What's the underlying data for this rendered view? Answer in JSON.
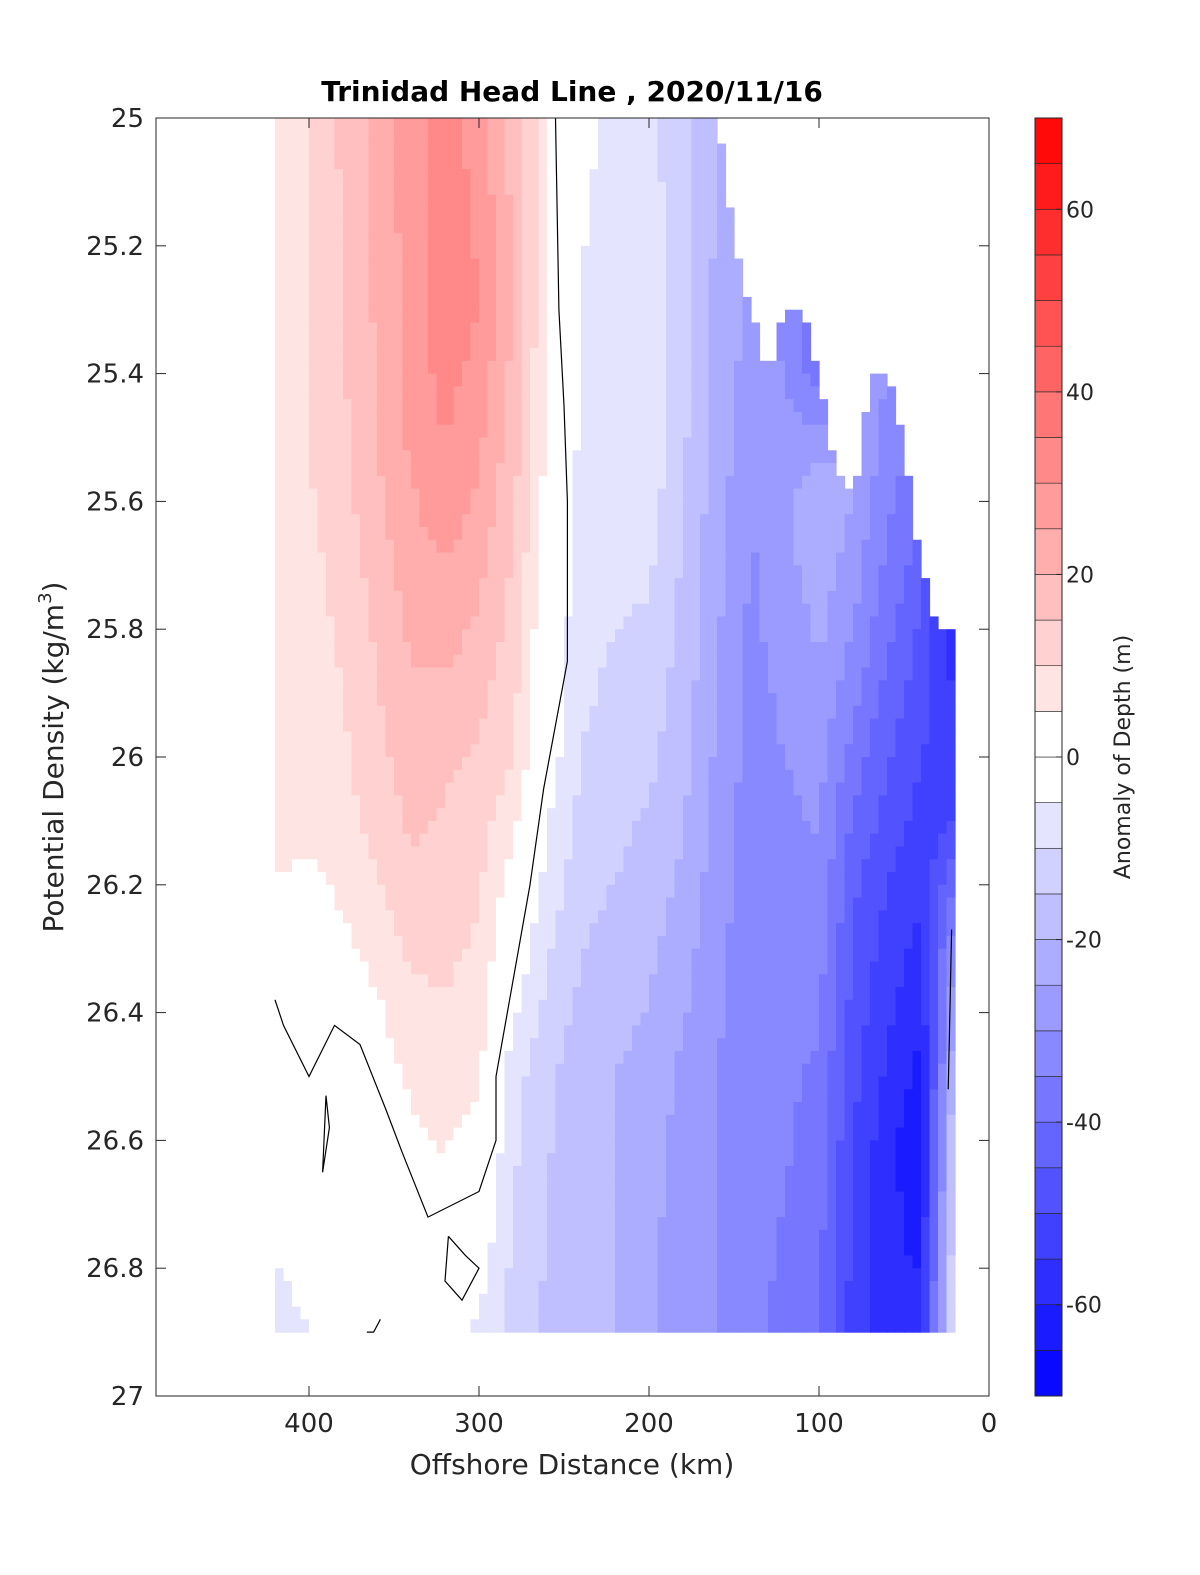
{
  "chart_data": {
    "type": "contourf",
    "title": "Trinidad Head Line , 2020/11/16",
    "xlabel": "Offshore Distance (km)",
    "ylabel_main": "Potential Density (kg/m",
    "ylabel_sup": "3",
    "ylabel_close": ")",
    "colorbar_label": "Anomaly of Depth (m)",
    "x_axis": {
      "range": [
        490,
        0
      ],
      "reversed": true,
      "ticks": [
        400,
        300,
        200,
        100,
        0
      ],
      "tick_labels": [
        "400",
        "300",
        "200",
        "100",
        "0"
      ]
    },
    "y_axis": {
      "range": [
        25,
        27
      ],
      "reversed": true,
      "ticks": [
        25,
        25.2,
        25.4,
        25.6,
        25.8,
        26,
        26.2,
        26.4,
        26.6,
        26.8,
        27
      ],
      "tick_labels": [
        "25",
        "25.2",
        "25.4",
        "25.6",
        "25.8",
        "26",
        "26.2",
        "26.4",
        "26.6",
        "26.8",
        "27"
      ]
    },
    "colorbar": {
      "range": [
        -70,
        70
      ],
      "levels_step": 5,
      "ticks": [
        60,
        40,
        20,
        0,
        -20,
        -40,
        -60
      ],
      "tick_labels": [
        "60",
        "40",
        "20",
        "0",
        "-20",
        "-40",
        "-60"
      ],
      "neg_color": "#0000ff",
      "pos_color": "#ff0000",
      "zero_color": "#ffffff"
    },
    "data_extent": {
      "x": [
        420,
        20
      ],
      "y": [
        25,
        26.9
      ]
    },
    "upper_boundary": [
      [
        160,
        25
      ],
      [
        150,
        25.2
      ],
      [
        140,
        25.3
      ],
      [
        130,
        25.4
      ],
      [
        120,
        25.3
      ],
      [
        110,
        25.3
      ],
      [
        100,
        25.4
      ],
      [
        90,
        25.55
      ],
      [
        80,
        25.6
      ],
      [
        70,
        25.4
      ],
      [
        60,
        25.4
      ],
      [
        50,
        25.5
      ],
      [
        40,
        25.7
      ],
      [
        30,
        25.8
      ],
      [
        20,
        25.8
      ]
    ],
    "columns_x": [
      420,
      400,
      380,
      360,
      340,
      320,
      300,
      280,
      260,
      240,
      220,
      200,
      180,
      160,
      140,
      120,
      100,
      80,
      60,
      40,
      20
    ],
    "column_profiles": [
      [
        [
          25.0,
          8
        ],
        [
          25.5,
          10
        ],
        [
          26.1,
          8
        ],
        [
          26.4,
          -2
        ],
        [
          26.9,
          -6
        ]
      ],
      [
        [
          25.0,
          10
        ],
        [
          25.5,
          10
        ],
        [
          26.1,
          6
        ],
        [
          26.4,
          -1
        ],
        [
          26.9,
          -5
        ]
      ],
      [
        [
          25.0,
          16
        ],
        [
          25.5,
          14
        ],
        [
          26.1,
          8
        ],
        [
          26.4,
          2
        ],
        [
          26.9,
          -2
        ]
      ],
      [
        [
          25.0,
          22
        ],
        [
          25.5,
          20
        ],
        [
          26.1,
          12
        ],
        [
          26.4,
          4
        ],
        [
          26.9,
          -3
        ]
      ],
      [
        [
          25.0,
          28
        ],
        [
          25.5,
          26
        ],
        [
          26.1,
          16
        ],
        [
          26.5,
          6
        ],
        [
          26.9,
          -3
        ]
      ],
      [
        [
          25.0,
          32
        ],
        [
          25.3,
          34
        ],
        [
          25.6,
          28
        ],
        [
          26.0,
          16
        ],
        [
          26.5,
          8
        ],
        [
          26.9,
          -2
        ]
      ],
      [
        [
          25.0,
          28
        ],
        [
          25.3,
          30
        ],
        [
          25.6,
          24
        ],
        [
          26.0,
          14
        ],
        [
          26.5,
          6
        ],
        [
          26.9,
          -6
        ]
      ],
      [
        [
          25.0,
          18
        ],
        [
          25.3,
          20
        ],
        [
          25.6,
          16
        ],
        [
          26.0,
          10
        ],
        [
          26.5,
          -8
        ],
        [
          26.9,
          -12
        ]
      ],
      [
        [
          25.0,
          6
        ],
        [
          25.5,
          4
        ],
        [
          26.0,
          -2
        ],
        [
          26.5,
          -14
        ],
        [
          26.9,
          -16
        ]
      ],
      [
        [
          25.0,
          -4
        ],
        [
          25.5,
          -6
        ],
        [
          26.0,
          -10
        ],
        [
          26.5,
          -18
        ],
        [
          26.9,
          -18
        ]
      ],
      [
        [
          25.0,
          -6
        ],
        [
          25.5,
          -7
        ],
        [
          26.0,
          -12
        ],
        [
          26.5,
          -20
        ],
        [
          26.9,
          -20
        ]
      ],
      [
        [
          25.0,
          -8
        ],
        [
          25.5,
          -6
        ],
        [
          26.0,
          -14
        ],
        [
          26.5,
          -22
        ],
        [
          26.9,
          -24
        ]
      ],
      [
        [
          25.0,
          -14
        ],
        [
          25.5,
          -14
        ],
        [
          26.0,
          -18
        ],
        [
          26.5,
          -26
        ],
        [
          26.9,
          -30
        ]
      ],
      [
        [
          25.0,
          -20
        ],
        [
          25.5,
          -22
        ],
        [
          26.0,
          -26
        ],
        [
          26.5,
          -30
        ],
        [
          26.9,
          -30
        ]
      ],
      [
        [
          25.3,
          -26
        ],
        [
          25.6,
          -30
        ],
        [
          26.0,
          -32
        ],
        [
          26.5,
          -34
        ],
        [
          26.9,
          -34
        ]
      ],
      [
        [
          25.3,
          -32
        ],
        [
          25.6,
          -26
        ],
        [
          26.0,
          -30
        ],
        [
          26.5,
          -34
        ],
        [
          26.9,
          -36
        ]
      ],
      [
        [
          25.4,
          -38
        ],
        [
          25.6,
          -20
        ],
        [
          26.0,
          -28
        ],
        [
          26.5,
          -36
        ],
        [
          26.9,
          -40
        ]
      ],
      [
        [
          25.55,
          -24
        ],
        [
          25.8,
          -30
        ],
        [
          26.2,
          -44
        ],
        [
          26.6,
          -50
        ],
        [
          26.9,
          -52
        ]
      ],
      [
        [
          25.4,
          -30
        ],
        [
          25.7,
          -36
        ],
        [
          26.2,
          -50
        ],
        [
          26.6,
          -58
        ],
        [
          26.9,
          -60
        ]
      ],
      [
        [
          25.5,
          -36
        ],
        [
          25.8,
          -46
        ],
        [
          26.2,
          -54
        ],
        [
          26.6,
          -64
        ],
        [
          26.9,
          -58
        ]
      ],
      [
        [
          25.8,
          -58
        ],
        [
          26.1,
          -50
        ],
        [
          26.3,
          -30
        ],
        [
          26.6,
          -12
        ],
        [
          26.9,
          -6
        ]
      ]
    ],
    "zero_contours": [
      [
        [
          255,
          25
        ],
        [
          253,
          25.3
        ],
        [
          250,
          25.45
        ],
        [
          248,
          25.6
        ],
        [
          248,
          25.85
        ],
        [
          262,
          26.05
        ],
        [
          270,
          26.2
        ],
        [
          280,
          26.35
        ],
        [
          290,
          26.5
        ],
        [
          290,
          26.6
        ],
        [
          300,
          26.68
        ],
        [
          330,
          26.72
        ],
        [
          345,
          26.62
        ],
        [
          355,
          26.55
        ],
        [
          370,
          26.45
        ],
        [
          385,
          26.42
        ],
        [
          400,
          26.5
        ],
        [
          415,
          26.42
        ],
        [
          420,
          26.38
        ]
      ],
      [
        [
          390,
          26.53
        ],
        [
          388,
          26.58
        ],
        [
          392,
          26.65
        ],
        [
          390,
          26.53
        ]
      ],
      [
        [
          318,
          26.75
        ],
        [
          308,
          26.78
        ],
        [
          300,
          26.8
        ],
        [
          310,
          26.85
        ],
        [
          320,
          26.82
        ],
        [
          318,
          26.75
        ]
      ],
      [
        [
          22,
          26.27
        ],
        [
          23,
          26.4
        ],
        [
          24,
          26.52
        ]
      ],
      [
        [
          358,
          26.88
        ],
        [
          362,
          26.9
        ],
        [
          366,
          26.9
        ]
      ]
    ]
  }
}
